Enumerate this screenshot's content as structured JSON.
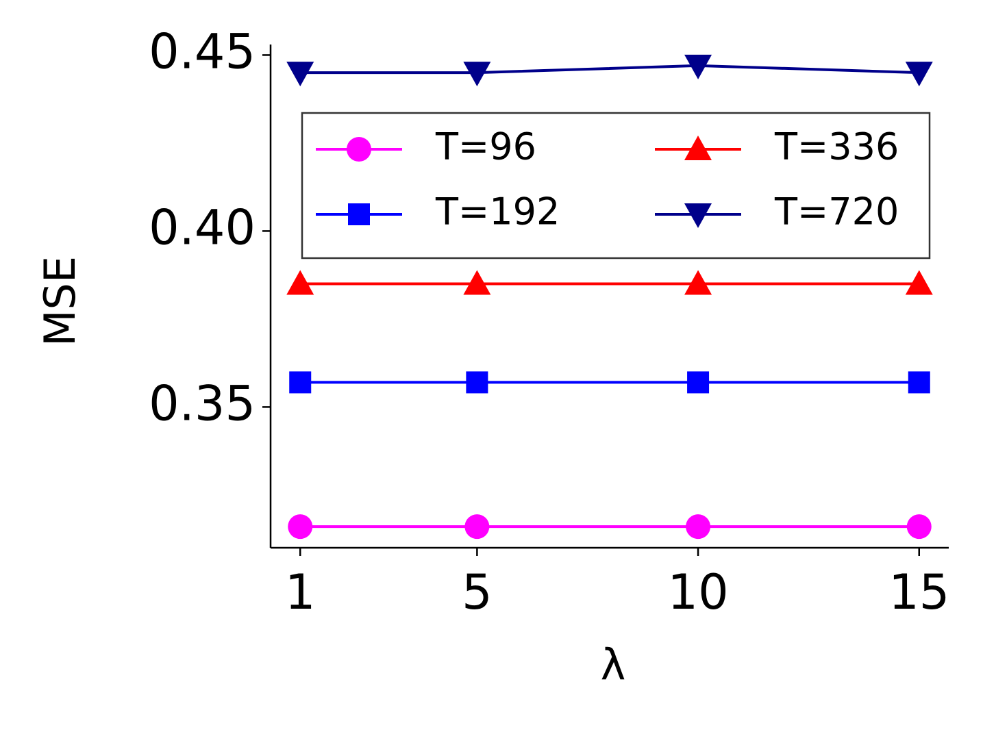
{
  "chart_data": {
    "type": "line",
    "x_label": "λ",
    "y_label": "MSE",
    "x": [
      1,
      5,
      10,
      15
    ],
    "series": [
      {
        "name": "T=96",
        "color": "#ff00ff",
        "marker": "circle",
        "values": [
          0.316,
          0.316,
          0.316,
          0.316
        ]
      },
      {
        "name": "T=192",
        "color": "#0000ff",
        "marker": "square",
        "values": [
          0.357,
          0.357,
          0.357,
          0.357
        ]
      },
      {
        "name": "T=336",
        "color": "#ff0000",
        "marker": "triangle-up",
        "values": [
          0.385,
          0.385,
          0.385,
          0.385
        ]
      },
      {
        "name": "T=720",
        "color": "#00008b",
        "marker": "triangle-down",
        "values": [
          0.445,
          0.445,
          0.447,
          0.445
        ]
      }
    ],
    "xlim": [
      0.33,
      15.67
    ],
    "xticks": [
      1,
      5,
      10,
      15
    ],
    "ylim": [
      0.31,
      0.453
    ],
    "yticks": [
      {
        "value": 0.35,
        "label": "0.35"
      },
      {
        "value": 0.4,
        "label": "0.40"
      },
      {
        "value": 0.45,
        "label": "0.45"
      }
    ],
    "grid": false,
    "legend_position": "upper-center",
    "legend_columns": 2
  }
}
